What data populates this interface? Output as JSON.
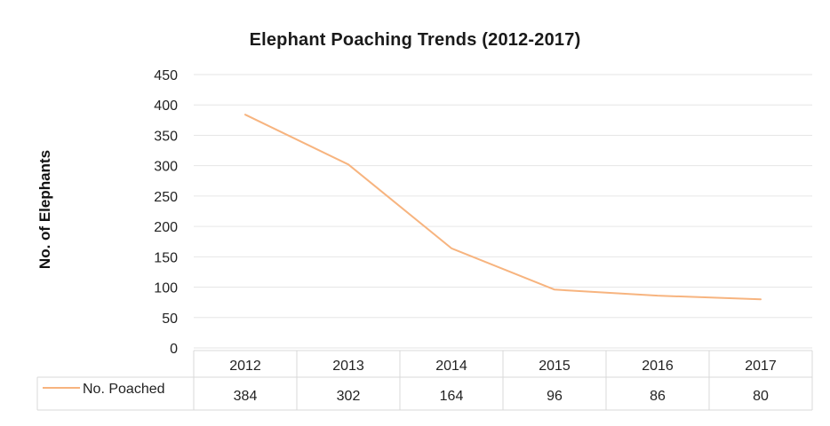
{
  "chart_data": {
    "type": "line",
    "title": "Elephant Poaching  Trends (2012-2017)",
    "xlabel": "",
    "ylabel": "No. of  Elephants",
    "ylim": [
      0,
      450
    ],
    "yticks": [
      "450",
      "400",
      "350",
      "300",
      "250",
      "200",
      "150",
      "100",
      "50",
      "0"
    ],
    "categories": [
      "2012",
      "2013",
      "2014",
      "2015",
      "2016",
      "2017"
    ],
    "series": [
      {
        "name": "No. Poached",
        "values": [
          384,
          302,
          164,
          96,
          86,
          80
        ],
        "color": "#F7B47F"
      }
    ],
    "grid": true,
    "legend": "data-table-left"
  }
}
